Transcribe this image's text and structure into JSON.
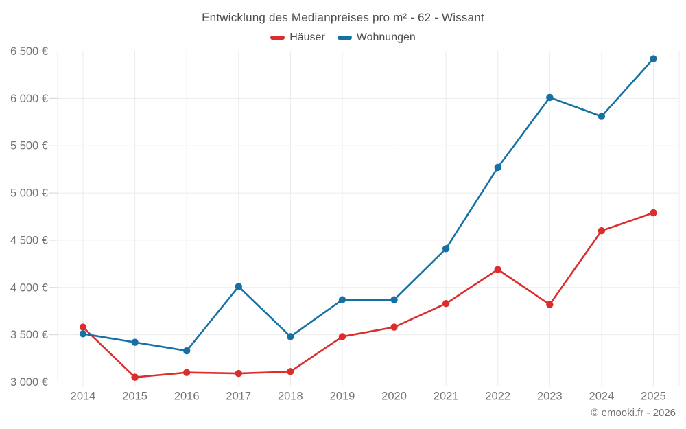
{
  "title": "Entwicklung des Medianpreises pro m² - 62 - Wissant",
  "footer": "© emooki.fr - 2026",
  "colors": {
    "grid": "#ebebeb",
    "tick": "#d4d4d4",
    "axis_text": "#757575",
    "title_text": "#4d4d4d",
    "hauser_red": "#dc2c2c",
    "wohnungen_blue": "#1670a4"
  },
  "chart_data": {
    "type": "line",
    "title": "Entwicklung des Medianpreises pro m² - 62 - Wissant",
    "xlabel": "",
    "ylabel": "",
    "categories": [
      "2014",
      "2015",
      "2016",
      "2017",
      "2018",
      "2019",
      "2020",
      "2021",
      "2022",
      "2023",
      "2024",
      "2025"
    ],
    "series": [
      {
        "name": "Häuser",
        "color": "#dc2c2c",
        "values": [
          3580,
          3050,
          3100,
          3090,
          3110,
          3480,
          3580,
          3830,
          4190,
          3820,
          4600,
          4790
        ]
      },
      {
        "name": "Wohnungen",
        "color": "#1670a4",
        "values": [
          3510,
          3420,
          3330,
          4010,
          3480,
          3870,
          3870,
          4410,
          5270,
          6010,
          5810,
          6420
        ]
      }
    ],
    "ylim": [
      3000,
      6500
    ],
    "ytick_step": 500,
    "ytick_labels": [
      "3 000 €",
      "3 500 €",
      "4 000 €",
      "4 500 €",
      "5 000 €",
      "5 500 €",
      "6 000 €",
      "6 500 €"
    ],
    "grid": true,
    "legend_position": "top",
    "currency": "€"
  }
}
